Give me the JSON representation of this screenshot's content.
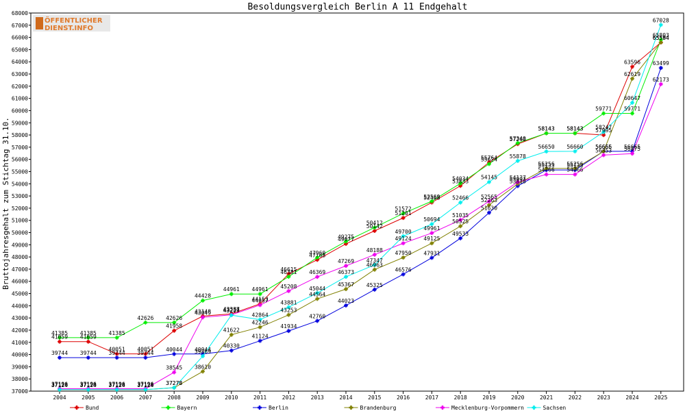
{
  "chart_data": {
    "type": "line",
    "title": "Besoldungsvergleich Berlin A 11 Endgehalt",
    "ylabel": "Bruttojahresgehalt zum Stichtag 31.10.",
    "xlabel": "",
    "x": [
      "2004",
      "2005",
      "2006",
      "2007",
      "2008",
      "2009",
      "2010",
      "2011",
      "2012",
      "2013",
      "2014",
      "2015",
      "2016",
      "2017",
      "2018",
      "2019",
      "2020",
      "2021",
      "2022",
      "2023",
      "2024",
      "2025"
    ],
    "ylim": [
      37000,
      68000
    ],
    "ytick_step": 1000,
    "grid": false,
    "legend_position": "bottom",
    "series": [
      {
        "name": "Bund",
        "color": "#dd0000",
        "values": [
          41059,
          41059,
          40051,
          40051,
          41958,
          43148,
          43337,
          44153,
          46615,
          47768,
          49077,
          50142,
          51201,
          52468,
          53833,
          55764,
          57260,
          58143,
          58143,
          57995,
          63596,
          65584
        ]
      },
      {
        "name": "Bayern",
        "color": "#00ee00",
        "values": [
          41385,
          41385,
          41385,
          42626,
          42626,
          44428,
          44961,
          44961,
          46381,
          47960,
          49275,
          50412,
          51572,
          52569,
          54034,
          55624,
          57340,
          58143,
          58143,
          59771,
          59771,
          65803
        ]
      },
      {
        "name": "Berlin",
        "color": "#0000dd",
        "values": [
          39744,
          39744,
          39744,
          39744,
          40044,
          40044,
          40330,
          41124,
          41934,
          42760,
          44023,
          45325,
          46576,
          47931,
          49533,
          51630,
          53818,
          55133,
          55133,
          56665,
          56665,
          63499
        ]
      },
      {
        "name": "Brandenburg",
        "color": "#808000",
        "values": [
          37128,
          37128,
          37128,
          37128,
          37278,
          38610,
          41622,
          42246,
          43253,
          44564,
          45367,
          46963,
          47950,
          49125,
          50525,
          52263,
          53993,
          55256,
          55256,
          56656,
          62619,
          65594
        ]
      },
      {
        "name": "Mecklenburg-Vorpommern",
        "color": "#ee00ee",
        "values": [
          37196,
          37196,
          37196,
          37196,
          38545,
          43049,
          43257,
          44057,
          45208,
          46369,
          47269,
          48188,
          49124,
          49961,
          51035,
          52565,
          54137,
          54766,
          54766,
          56353,
          56475,
          62173
        ]
      },
      {
        "name": "Sachsen",
        "color": "#00eeee",
        "values": [
          37124,
          37124,
          37124,
          37124,
          37278,
          39869,
          43229,
          42864,
          43881,
          45044,
          46373,
          47347,
          49700,
          50694,
          52466,
          54145,
          55878,
          56650,
          56660,
          58247,
          60647,
          67028
        ]
      }
    ]
  },
  "logo": {
    "line1": "ÖFFENTLICHER",
    "line2": "DIENST.INFO"
  }
}
